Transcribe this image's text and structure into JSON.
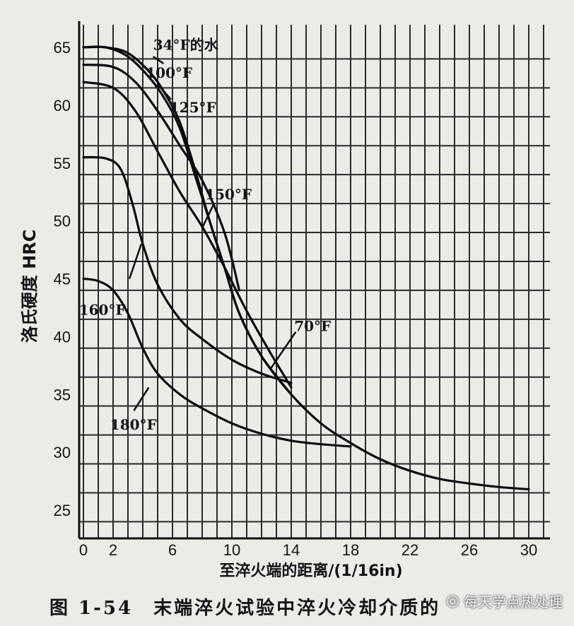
{
  "chart_data": {
    "type": "line",
    "xlabel": "至淬火端的距离/(1/16in)",
    "ylabel": "洛氏硬度 HRC",
    "xlim": [
      0,
      30
    ],
    "ylim": [
      23,
      66
    ],
    "xticks": [
      0,
      2,
      6,
      10,
      14,
      18,
      22,
      26,
      30
    ],
    "yticks": [
      25,
      30,
      35,
      40,
      45,
      50,
      55,
      60,
      65
    ],
    "grid": true,
    "series": [
      {
        "name": "34°F的水",
        "points": [
          [
            0,
            65
          ],
          [
            1.5,
            65
          ],
          [
            3,
            64.5
          ],
          [
            4.5,
            62.8
          ],
          [
            5.5,
            61
          ],
          [
            6.5,
            58.5
          ],
          [
            7.5,
            54.5
          ],
          [
            8.5,
            50
          ],
          [
            9.5,
            46
          ],
          [
            10.5,
            42
          ],
          [
            12,
            38.3
          ],
          [
            14,
            35
          ],
          [
            16,
            32.5
          ],
          [
            18,
            30.8
          ],
          [
            20,
            29.4
          ],
          [
            22,
            28.4
          ],
          [
            24,
            27.7
          ],
          [
            26,
            27.3
          ],
          [
            28,
            27.0
          ],
          [
            30,
            26.8
          ]
        ]
      },
      {
        "name": "100°F",
        "points": [
          [
            0,
            65
          ],
          [
            1.5,
            65
          ],
          [
            3,
            64.2
          ],
          [
            4.5,
            62.3
          ],
          [
            5.5,
            60.5
          ],
          [
            6.5,
            58
          ],
          [
            7.5,
            54
          ],
          [
            8.5,
            50
          ],
          [
            9.5,
            46
          ],
          [
            10.5,
            42
          ],
          [
            12,
            38.3
          ],
          [
            14,
            35
          ]
        ]
      },
      {
        "name": "125°F",
        "points": [
          [
            0,
            63.5
          ],
          [
            2,
            63.3
          ],
          [
            3.5,
            62
          ],
          [
            5,
            59.5
          ],
          [
            6.5,
            56.5
          ],
          [
            8,
            53.5
          ],
          [
            9.5,
            49
          ],
          [
            10.5,
            44
          ]
        ]
      },
      {
        "name": "150°F",
        "points": [
          [
            0,
            62
          ],
          [
            2,
            61.5
          ],
          [
            3.5,
            59.5
          ],
          [
            5,
            56
          ],
          [
            6.5,
            52.5
          ],
          [
            8,
            49.5
          ],
          [
            9.5,
            46
          ],
          [
            11,
            42.2
          ],
          [
            12.5,
            38.8
          ],
          [
            14,
            35.6
          ]
        ]
      },
      {
        "name": "160°F",
        "points": [
          [
            0,
            55.5
          ],
          [
            1.5,
            55.4
          ],
          [
            2.5,
            54.5
          ],
          [
            3.3,
            51.5
          ],
          [
            4,
            48
          ],
          [
            5,
            44.5
          ],
          [
            6.5,
            41.5
          ],
          [
            8,
            39.8
          ],
          [
            10,
            38
          ],
          [
            12,
            36.8
          ],
          [
            14,
            36
          ]
        ]
      },
      {
        "name": "180°F",
        "points": [
          [
            0,
            45
          ],
          [
            1,
            44.8
          ],
          [
            2,
            44
          ],
          [
            3,
            42
          ],
          [
            4,
            39
          ],
          [
            5,
            36.8
          ],
          [
            6.5,
            35
          ],
          [
            8,
            33.8
          ],
          [
            10,
            32.5
          ],
          [
            12,
            31.6
          ],
          [
            14,
            31
          ],
          [
            16,
            30.7
          ],
          [
            18,
            30.5
          ]
        ]
      }
    ],
    "annotations": [
      {
        "text": "34°F的水",
        "at": [
          4.7,
          65.2
        ]
      },
      {
        "text": "100°F",
        "at": [
          4.2,
          62.8
        ]
      },
      {
        "text": "125°F",
        "at": [
          5.8,
          59.8
        ]
      },
      {
        "text": "150°F",
        "at": [
          8.2,
          52.3
        ]
      },
      {
        "text": "160°F",
        "at": [
          -0.3,
          42.3
        ]
      },
      {
        "text": "70°F",
        "at": [
          14.2,
          40.9
        ]
      },
      {
        "text": "180°F",
        "at": [
          1.8,
          32.4
        ]
      }
    ]
  },
  "caption": "图 1-54　末端淬火试验中淬火冷却介质的",
  "watermark": {
    "icon": "wechat-icon",
    "text": "每天学点热处理"
  }
}
